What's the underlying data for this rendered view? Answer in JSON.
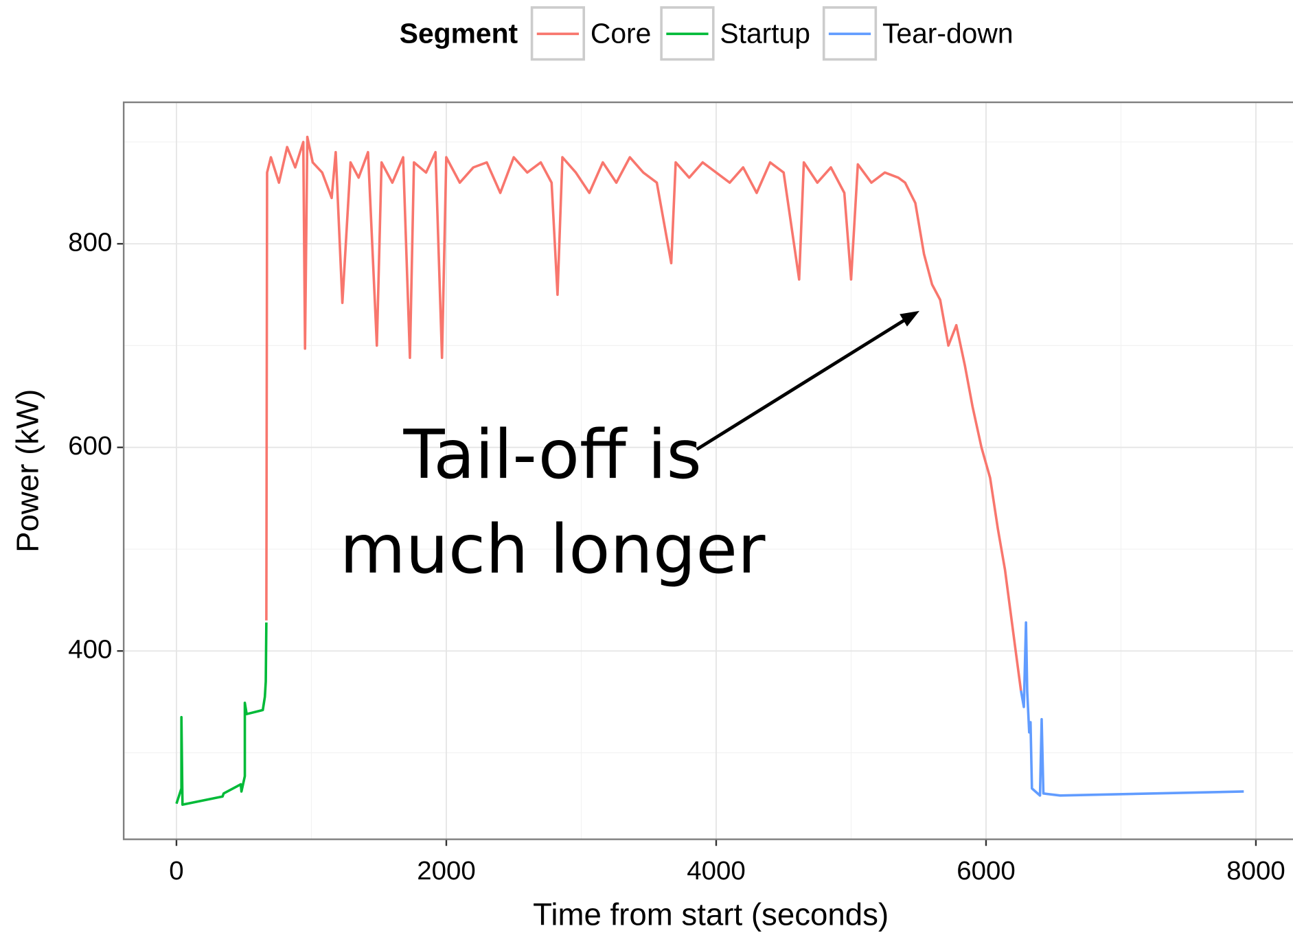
{
  "chart_data": {
    "type": "line",
    "x_label": "Time from start (seconds)",
    "y_label": "Power (kW)",
    "legend_title": "Segment",
    "legend_position": "top",
    "annotation": [
      "Tail-off is",
      "much longer"
    ],
    "xlim": [
      -391,
      8275
    ],
    "ylim": [
      215,
      939
    ],
    "xticks": [
      0,
      2000,
      4000,
      6000,
      8000
    ],
    "yticks": [
      400,
      600,
      800
    ],
    "x_minor_grid": [
      1000,
      3000,
      5000,
      7000
    ],
    "y_minor_grid": [
      300,
      500,
      700,
      900
    ],
    "grid": true,
    "series": [
      {
        "name": "Core",
        "color": "#f8766d",
        "x": [
          666,
          672,
          700,
          760,
          820,
          880,
          940,
          953,
          970,
          1010,
          1080,
          1150,
          1180,
          1230,
          1290,
          1350,
          1420,
          1485,
          1520,
          1600,
          1680,
          1730,
          1760,
          1850,
          1920,
          1968,
          2000,
          2100,
          2200,
          2300,
          2400,
          2500,
          2600,
          2700,
          2780,
          2824,
          2860,
          2960,
          3060,
          3160,
          3260,
          3360,
          3460,
          3560,
          3667,
          3700,
          3800,
          3900,
          4000,
          4100,
          4200,
          4300,
          4400,
          4500,
          4615,
          4650,
          4750,
          4850,
          4950,
          5000,
          5050,
          5150,
          5250,
          5350,
          5400,
          5476,
          5540,
          5600,
          5660,
          5721,
          5780,
          5844,
          5900,
          5966,
          6030,
          6088,
          6140,
          6180,
          6220,
          6259
        ],
        "values": [
          430,
          870,
          885,
          860,
          895,
          875,
          900,
          697,
          905,
          880,
          870,
          845,
          890,
          742,
          880,
          865,
          890,
          700,
          880,
          860,
          885,
          688,
          880,
          870,
          890,
          688,
          885,
          860,
          875,
          880,
          850,
          885,
          870,
          880,
          860,
          750,
          885,
          870,
          850,
          880,
          860,
          885,
          870,
          860,
          781,
          880,
          865,
          880,
          870,
          860,
          875,
          850,
          880,
          870,
          765,
          880,
          860,
          875,
          850,
          765,
          878,
          860,
          870,
          865,
          860,
          840,
          790,
          760,
          745,
          700,
          720,
          680,
          640,
          600,
          570,
          520,
          480,
          440,
          400,
          361
        ]
      },
      {
        "name": "Startup",
        "color": "#00ba38",
        "x": [
          0,
          37,
          37,
          45,
          342,
          350,
          477,
          482,
          507,
          507,
          520,
          640,
          655,
          662,
          666
        ],
        "values": [
          250,
          265,
          335,
          249,
          257,
          260,
          269,
          262,
          277,
          349,
          338,
          342,
          355,
          370,
          428
        ]
      },
      {
        "name": "Tear-down",
        "color": "#619cff",
        "x": [
          6259,
          6280,
          6296,
          6305,
          6320,
          6330,
          6340,
          6400,
          6412,
          6425,
          6550,
          7910
        ],
        "values": [
          361,
          345,
          428,
          360,
          320,
          330,
          265,
          258,
          333,
          260,
          258,
          262
        ]
      }
    ]
  }
}
